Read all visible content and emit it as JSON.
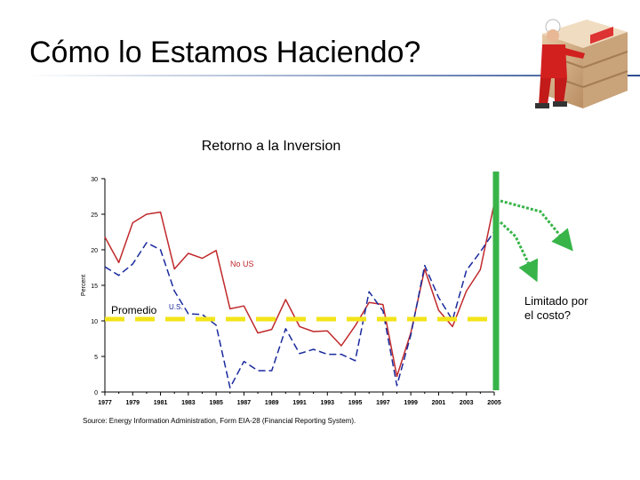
{
  "slide": {
    "title": "Cómo lo Estamos Haciendo?"
  },
  "illustration": {
    "icon": "worker-leaning-on-crate-icon"
  },
  "chart_data": {
    "type": "line",
    "title": "Retorno a la Inversion",
    "ylabel": "Percent",
    "xlabel": "",
    "xlim": [
      1977,
      2005
    ],
    "ylim": [
      0,
      30
    ],
    "x_ticks": [
      "1977",
      "1979",
      "1981",
      "1983",
      "1985",
      "1987",
      "1989",
      "1991",
      "1993",
      "1995",
      "1997",
      "1999",
      "2001",
      "2003",
      "2005"
    ],
    "y_ticks": [
      "0",
      "5",
      "10",
      "15",
      "20",
      "25",
      "30"
    ],
    "grid": false,
    "series": [
      {
        "name": "No US",
        "color": "#c0292c",
        "style": "solid",
        "x": [
          1977,
          1978,
          1979,
          1980,
          1981,
          1982,
          1983,
          1984,
          1985,
          1986,
          1987,
          1988,
          1989,
          1990,
          1991,
          1992,
          1993,
          1994,
          1995,
          1996,
          1997,
          1998,
          1999,
          2000,
          2001,
          2002,
          2003,
          2004,
          2005
        ],
        "values": [
          21.8,
          18.2,
          23.8,
          25.0,
          25.3,
          17.3,
          19.5,
          18.8,
          19.9,
          11.7,
          12.1,
          8.3,
          8.8,
          13.0,
          9.2,
          8.5,
          8.6,
          6.5,
          9.3,
          12.6,
          12.3,
          2.2,
          8.3,
          17.3,
          11.5,
          9.2,
          14.2,
          17.2,
          26.5
        ]
      },
      {
        "name": "U.S.",
        "color": "#1a2a9c",
        "style": "dashed",
        "x": [
          1977,
          1978,
          1979,
          1980,
          1981,
          1982,
          1983,
          1984,
          1985,
          1986,
          1987,
          1988,
          1989,
          1990,
          1991,
          1992,
          1993,
          1994,
          1995,
          1996,
          1997,
          1998,
          1999,
          2000,
          2001,
          2002,
          2003,
          2004,
          2005
        ],
        "values": [
          17.6,
          16.4,
          18.0,
          21.0,
          20.0,
          14.2,
          11.0,
          10.9,
          9.4,
          0.6,
          4.3,
          3.0,
          3.0,
          8.9,
          5.4,
          6.0,
          5.3,
          5.3,
          4.4,
          14.1,
          11.4,
          0.9,
          8.0,
          17.8,
          13.3,
          10.1,
          17.1,
          19.7,
          22.6
        ]
      }
    ],
    "annotations": {
      "series_label_no_us": "No US",
      "series_label_us": "U.S.",
      "average_label": "Promedio",
      "average_value": 10,
      "average_color": "#f2e418",
      "marker_year": 2005.2,
      "marker_color": "#38b449",
      "arrow_color": "#38b449",
      "side_note_line1": "Limitado por",
      "side_note_line2": "el costo?"
    },
    "source": "Source: Energy Information Administration, Form EIA-28 (Financial Reporting System)."
  }
}
